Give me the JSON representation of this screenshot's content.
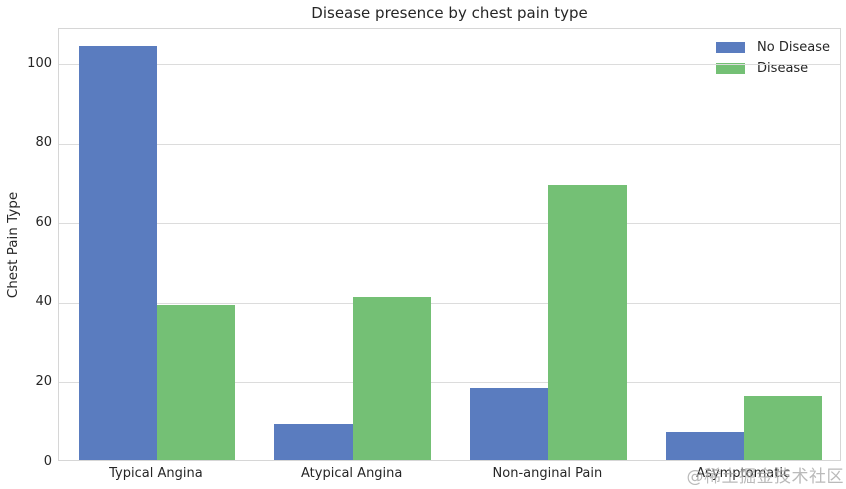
{
  "watermark": "@稀土掘金技术社区",
  "chart_data": {
    "type": "bar",
    "title": "Disease presence by chest pain type",
    "xlabel": "",
    "ylabel": "Chest Pain Type",
    "categories": [
      "Typical Angina",
      "Atypical Angina",
      "Non-anginal Pain",
      "Asymptomatic"
    ],
    "series": [
      {
        "name": "No Disease",
        "color": "#5a7cbf",
        "values": [
          104,
          9,
          18,
          7
        ]
      },
      {
        "name": "Disease",
        "color": "#74c075",
        "values": [
          39,
          41,
          69,
          16
        ]
      }
    ],
    "yticks": [
      0,
      20,
      40,
      60,
      80,
      100
    ],
    "ylim": [
      0,
      108.8
    ],
    "grid": true,
    "grid_color": "#dcdcdc",
    "legend_position": "upper right",
    "bar_group_fraction": 0.8
  }
}
